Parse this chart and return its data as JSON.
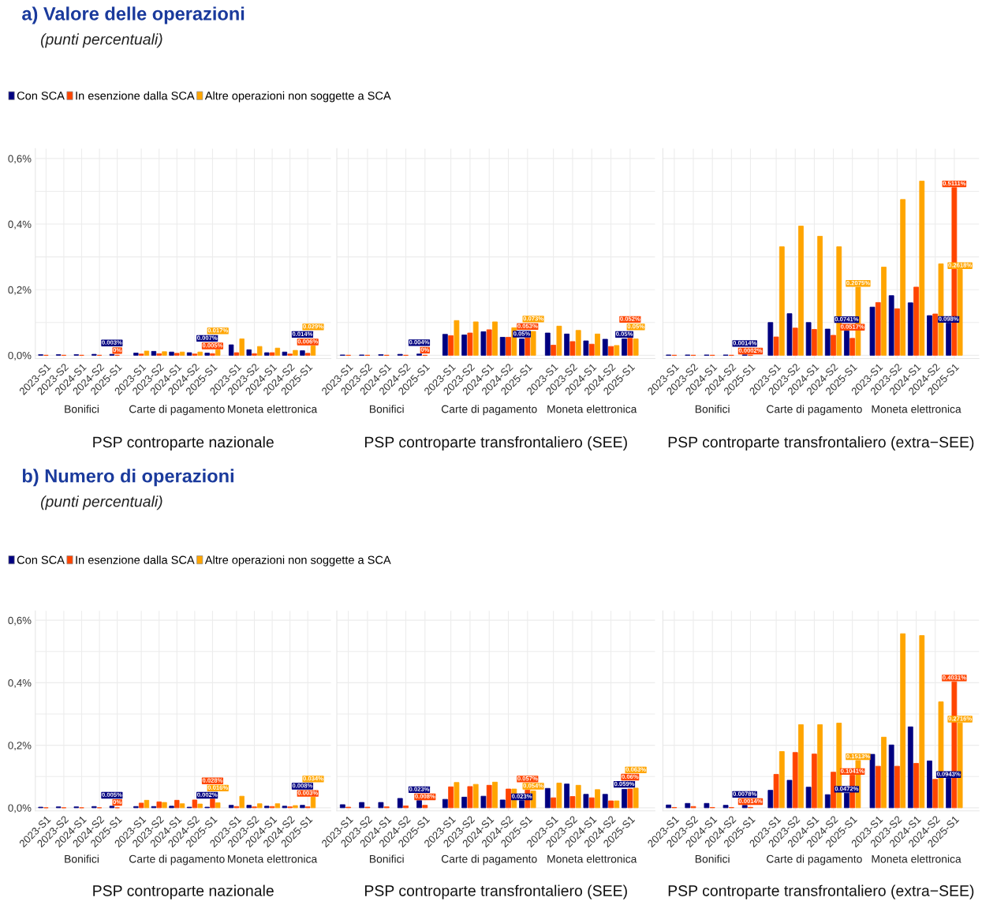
{
  "chart_data": [
    {
      "type": "bar",
      "title": "a) Valore delle operazioni",
      "subtitle": "(punti percentuali)",
      "legend": "top",
      "xlabel": "PSP controparte nazionale",
      "categories": [
        "2023-S1",
        "2023-S2",
        "2024-S1",
        "2024-S2",
        "2025-S1",
        "2023-S1",
        "2023-S2",
        "2024-S1",
        "2024-S2",
        "2025-S1",
        "2023-S1",
        "2023-S2",
        "2024-S1",
        "2024-S2",
        "2025-S1"
      ],
      "annotations": [
        "Bonifici",
        "Carte di pagamento",
        "Moneta elettronica"
      ],
      "ylim": [
        -0.01,
        0.63
      ],
      "yticks": [
        {
          "value": 0,
          "label": "0,0%"
        },
        {
          "value": 0.1,
          "label": null
        },
        {
          "value": 0.2,
          "label": "0,2%"
        },
        {
          "value": 0.3,
          "label": null
        },
        {
          "value": 0.4,
          "label": "0,4%"
        },
        {
          "value": 0.5,
          "label": null
        },
        {
          "value": 0.6,
          "label": "0,6%"
        }
      ],
      "grid": true,
      "series": [
        {
          "name": "Con SCA",
          "color": "#000080",
          "values": [
            0.002,
            0.002,
            0.002,
            0.003,
            0.003,
            0.007,
            0.012,
            0.01,
            0.008,
            0.007,
            0.032,
            0.017,
            0.008,
            0.01,
            0.014
          ],
          "value_labels": [
            null,
            null,
            null,
            null,
            "0.003%",
            null,
            null,
            null,
            null,
            "0.007%",
            null,
            null,
            null,
            null,
            "0.014%"
          ]
        },
        {
          "name": "In esenzione dalla SCA",
          "color": "#ff4500",
          "values": [
            0,
            0,
            0,
            0,
            0,
            0.004,
            0.005,
            0.006,
            0.004,
            0.005,
            0.008,
            0.005,
            0.008,
            0.004,
            0.006
          ],
          "value_labels": [
            null,
            null,
            null,
            null,
            "0%",
            null,
            null,
            null,
            null,
            "0.005%",
            null,
            null,
            null,
            null,
            "0.006%"
          ]
        },
        {
          "name": "Altre operazioni non soggette a SCA",
          "color": "#ffa500",
          "values": [
            null,
            null,
            null,
            null,
            null,
            0.013,
            0.011,
            0.01,
            0.01,
            0.017,
            0.05,
            0.027,
            0.022,
            0.015,
            0.029
          ],
          "value_labels": [
            null,
            null,
            null,
            null,
            null,
            null,
            null,
            null,
            null,
            "0.017%",
            null,
            null,
            null,
            null,
            "0.029%"
          ]
        }
      ]
    },
    {
      "type": "bar",
      "tick_labels": "x",
      "xlabel": "PSP controparte transfrontaliero (SEE)",
      "categories": [
        "2023-S1",
        "2023-S2",
        "2024-S1",
        "2024-S2",
        "2025-S1",
        "2023-S1",
        "2023-S2",
        "2024-S1",
        "2024-S2",
        "2025-S1",
        "2023-S1",
        "2023-S2",
        "2024-S1",
        "2024-S2",
        "2025-S1"
      ],
      "annotations": [
        "Bonifici",
        "Carte di pagamento",
        "Moneta elettronica"
      ],
      "ylim": [
        -0.01,
        0.63
      ],
      "yticks": [
        {
          "value": 0,
          "label": null
        },
        {
          "value": 0.1,
          "label": null
        },
        {
          "value": 0.2,
          "label": null
        },
        {
          "value": 0.3,
          "label": null
        },
        {
          "value": 0.4,
          "label": null
        },
        {
          "value": 0.5,
          "label": null
        },
        {
          "value": 0.6,
          "label": null
        }
      ],
      "grid": true,
      "series": [
        {
          "color": "#000080",
          "values": [
            0.001,
            0.001,
            0.002,
            0.003,
            0.004,
            0.064,
            0.062,
            0.072,
            0.055,
            0.05,
            0.068,
            0.065,
            0.044,
            0.049,
            0.05
          ],
          "value_labels": [
            null,
            null,
            null,
            null,
            "0.004%",
            null,
            null,
            null,
            null,
            "0.05%",
            null,
            null,
            null,
            null,
            "0.05%"
          ]
        },
        {
          "color": "#ff4500",
          "values": [
            0,
            0,
            0,
            0,
            0,
            0.06,
            0.068,
            0.078,
            0.055,
            0.053,
            0.031,
            0.042,
            0.034,
            0.027,
            0.052
          ],
          "value_labels": [
            null,
            null,
            null,
            null,
            "0%",
            null,
            null,
            null,
            null,
            "0.053%",
            null,
            null,
            null,
            null,
            "0.052%"
          ]
        },
        {
          "color": "#ffa500",
          "values": [
            null,
            null,
            null,
            null,
            null,
            0.106,
            0.102,
            0.102,
            0.084,
            0.073,
            0.089,
            0.076,
            0.065,
            0.03,
            0.05
          ],
          "value_labels": [
            null,
            null,
            null,
            null,
            null,
            null,
            null,
            null,
            null,
            "0.073%",
            null,
            null,
            null,
            null,
            "0.05%"
          ]
        }
      ]
    },
    {
      "type": "bar",
      "tick_labels": "x",
      "xlabel": "PSP controparte transfrontaliero (extra−SEE)",
      "categories": [
        "2023-S1",
        "2023-S2",
        "2024-S1",
        "2024-S2",
        "2025-S1",
        "2023-S1",
        "2023-S2",
        "2024-S1",
        "2024-S2",
        "2025-S1",
        "2023-S1",
        "2023-S2",
        "2024-S1",
        "2024-S2",
        "2025-S1"
      ],
      "annotations": [
        "Bonifici",
        "Carte di pagamento",
        "Moneta elettronica"
      ],
      "ylim": [
        -0.01,
        0.63
      ],
      "yticks": [
        {
          "value": 0,
          "label": null
        },
        {
          "value": 0.1,
          "label": null
        },
        {
          "value": 0.2,
          "label": null
        },
        {
          "value": 0.3,
          "label": null
        },
        {
          "value": 0.4,
          "label": null
        },
        {
          "value": 0.5,
          "label": null
        },
        {
          "value": 0.6,
          "label": null
        }
      ],
      "grid": true,
      "series": [
        {
          "color": "#000080",
          "values": [
            0.001,
            0.001,
            0.001,
            0.001,
            0.0014,
            0.1,
            0.127,
            0.1,
            0.08,
            0.0741,
            0.147,
            0.182,
            0.16,
            0.121,
            0.098
          ],
          "value_labels": [
            null,
            null,
            null,
            null,
            "0.0014%",
            null,
            null,
            null,
            null,
            "0.0741%",
            null,
            null,
            null,
            null,
            "0.098%"
          ]
        },
        {
          "color": "#ff4500",
          "values": [
            0,
            0,
            0,
            0,
            0.0002,
            0.056,
            0.083,
            0.079,
            0.061,
            0.0517,
            0.161,
            0.142,
            0.208,
            0.126,
            0.5111
          ],
          "value_labels": [
            null,
            null,
            null,
            null,
            "0.0002%",
            null,
            null,
            null,
            null,
            "0.0517%",
            null,
            null,
            null,
            null,
            "0.5111%"
          ]
        },
        {
          "color": "#ffa500",
          "values": [
            null,
            null,
            null,
            null,
            null,
            0.331,
            0.394,
            0.363,
            0.331,
            0.2075,
            0.269,
            0.475,
            0.531,
            0.279,
            0.2618
          ],
          "value_labels": [
            null,
            null,
            null,
            null,
            null,
            null,
            null,
            null,
            null,
            "0.2075%",
            null,
            null,
            null,
            null,
            "0.2618%"
          ]
        }
      ]
    },
    {
      "type": "bar",
      "title": "b) Numero di operazioni",
      "subtitle": "(punti percentuali)",
      "legend": "top",
      "xlabel": "PSP controparte nazionale",
      "categories": [
        "2023-S1",
        "2023-S2",
        "2024-S1",
        "2024-S2",
        "2025-S1",
        "2023-S1",
        "2023-S2",
        "2024-S1",
        "2024-S2",
        "2025-S1",
        "2023-S1",
        "2023-S2",
        "2024-S1",
        "2024-S2",
        "2025-S1"
      ],
      "annotations": [
        "Bonifici",
        "Carte di pagamento",
        "Moneta elettronica"
      ],
      "ylim": [
        -0.01,
        0.63
      ],
      "yticks": [
        {
          "value": 0,
          "label": "0,0%"
        },
        {
          "value": 0.1,
          "label": null
        },
        {
          "value": 0.2,
          "label": "0,2%"
        },
        {
          "value": 0.3,
          "label": null
        },
        {
          "value": 0.4,
          "label": "0,4%"
        },
        {
          "value": 0.5,
          "label": null
        },
        {
          "value": 0.6,
          "label": "0,6%"
        }
      ],
      "grid": true,
      "series": [
        {
          "name": "Con SCA",
          "color": "#000080",
          "values": [
            0.002,
            0.003,
            0.003,
            0.004,
            0.005,
            0.004,
            0.004,
            0.005,
            0.002,
            0.002,
            0.008,
            0.008,
            0.005,
            0.005,
            0.008
          ],
          "value_labels": [
            null,
            null,
            null,
            null,
            "0.005%",
            null,
            null,
            null,
            null,
            "0.002%",
            null,
            null,
            null,
            null,
            "0.008%"
          ]
        },
        {
          "name": "In esenzione dalla SCA",
          "color": "#ff4500",
          "values": [
            0,
            0,
            0,
            0,
            0,
            0.015,
            0.019,
            0.024,
            0.025,
            0.028,
            0.004,
            0.003,
            0.004,
            0.003,
            0.003
          ],
          "value_labels": [
            null,
            null,
            null,
            null,
            "0%",
            null,
            null,
            null,
            null,
            "0.028%",
            null,
            null,
            null,
            null,
            "0.003%"
          ]
        },
        {
          "name": "Altre operazioni non soggette a SCA",
          "color": "#ffa500",
          "values": [
            null,
            null,
            null,
            null,
            null,
            0.024,
            0.017,
            0.013,
            0.012,
            0.016,
            0.037,
            0.013,
            0.013,
            0.007,
            0.034
          ],
          "value_labels": [
            null,
            null,
            null,
            null,
            null,
            null,
            null,
            null,
            null,
            "0.016%",
            null,
            null,
            null,
            null,
            "0.034%"
          ]
        }
      ]
    },
    {
      "type": "bar",
      "tick_labels": "x",
      "xlabel": "PSP controparte transfrontaliero (SEE)",
      "categories": [
        "2023-S1",
        "2023-S2",
        "2024-S1",
        "2024-S2",
        "2025-S1",
        "2023-S1",
        "2023-S2",
        "2024-S1",
        "2024-S2",
        "2025-S1",
        "2023-S1",
        "2023-S2",
        "2024-S1",
        "2024-S2",
        "2025-S1"
      ],
      "annotations": [
        "Bonifici",
        "Carte di pagamento",
        "Moneta elettronica"
      ],
      "ylim": [
        -0.01,
        0.63
      ],
      "yticks": [
        {
          "value": 0,
          "label": null
        },
        {
          "value": 0.1,
          "label": null
        },
        {
          "value": 0.2,
          "label": null
        },
        {
          "value": 0.3,
          "label": null
        },
        {
          "value": 0.4,
          "label": null
        },
        {
          "value": 0.5,
          "label": null
        },
        {
          "value": 0.6,
          "label": null
        }
      ],
      "grid": true,
      "series": [
        {
          "color": "#000080",
          "values": [
            0.01,
            0.017,
            0.017,
            0.03,
            0.023,
            0.027,
            0.034,
            0.037,
            0.025,
            0.023,
            0.062,
            0.076,
            0.043,
            0.043,
            0.059
          ],
          "value_labels": [
            null,
            null,
            null,
            null,
            "0.023%",
            null,
            null,
            null,
            null,
            "0.023%",
            null,
            null,
            null,
            null,
            "0.059%"
          ]
        },
        {
          "color": "#ff4500",
          "values": [
            0.002,
            0.002,
            0.003,
            0.006,
            0.008,
            0.067,
            0.068,
            0.072,
            0.06,
            0.057,
            0.032,
            0.036,
            0.032,
            0.022,
            0.06
          ],
          "value_labels": [
            null,
            null,
            null,
            null,
            "0.008%",
            null,
            null,
            null,
            null,
            "0.057%",
            null,
            null,
            null,
            null,
            "0.06%"
          ]
        },
        {
          "color": "#ffa500",
          "values": [
            null,
            null,
            null,
            null,
            null,
            0.081,
            0.075,
            0.082,
            0.06,
            0.054,
            0.079,
            0.072,
            0.058,
            0.022,
            0.063
          ],
          "value_labels": [
            null,
            null,
            null,
            null,
            null,
            null,
            null,
            null,
            null,
            "0.054%",
            null,
            null,
            null,
            null,
            "0.063%"
          ]
        }
      ]
    },
    {
      "type": "bar",
      "tick_labels": "x",
      "xlabel": "PSP controparte transfrontaliero (extra−SEE)",
      "categories": [
        "2023-S1",
        "2023-S2",
        "2024-S1",
        "2024-S2",
        "2025-S1",
        "2023-S1",
        "2023-S2",
        "2024-S1",
        "2024-S2",
        "2025-S1",
        "2023-S1",
        "2023-S2",
        "2024-S1",
        "2024-S2",
        "2025-S1"
      ],
      "annotations": [
        "Bonifici",
        "Carte di pagamento",
        "Moneta elettronica"
      ],
      "ylim": [
        -0.01,
        0.63
      ],
      "yticks": [
        {
          "value": 0,
          "label": null
        },
        {
          "value": 0.1,
          "label": null
        },
        {
          "value": 0.2,
          "label": null
        },
        {
          "value": 0.3,
          "label": null
        },
        {
          "value": 0.4,
          "label": null
        },
        {
          "value": 0.5,
          "label": null
        },
        {
          "value": 0.6,
          "label": null
        }
      ],
      "grid": true,
      "series": [
        {
          "color": "#000080",
          "values": [
            0.009,
            0.014,
            0.014,
            0.008,
            0.0078,
            0.056,
            0.088,
            0.066,
            0.042,
            0.0472,
            0.171,
            0.201,
            0.259,
            0.15,
            0.0943
          ],
          "value_labels": [
            null,
            null,
            null,
            null,
            "0.0078%",
            null,
            null,
            null,
            null,
            "0.0472%",
            null,
            null,
            null,
            null,
            "0.0943%"
          ]
        },
        {
          "color": "#ff4500",
          "values": [
            0.001,
            0.004,
            0.001,
            0.001,
            0.0014,
            0.107,
            0.177,
            0.172,
            0.114,
            0.1041,
            0.133,
            0.133,
            0.142,
            0.091,
            0.4031
          ],
          "value_labels": [
            null,
            null,
            null,
            null,
            "0.0014%",
            null,
            null,
            null,
            null,
            "0.1041%",
            null,
            null,
            null,
            null,
            "0.4031%"
          ]
        },
        {
          "color": "#ffa500",
          "values": [
            null,
            null,
            null,
            null,
            null,
            0.18,
            0.266,
            0.266,
            0.271,
            0.1513,
            0.226,
            0.557,
            0.551,
            0.339,
            0.2716
          ],
          "value_labels": [
            null,
            null,
            null,
            null,
            null,
            null,
            null,
            null,
            null,
            "0.1513%",
            null,
            null,
            null,
            null,
            "0.2716%"
          ]
        }
      ]
    }
  ]
}
